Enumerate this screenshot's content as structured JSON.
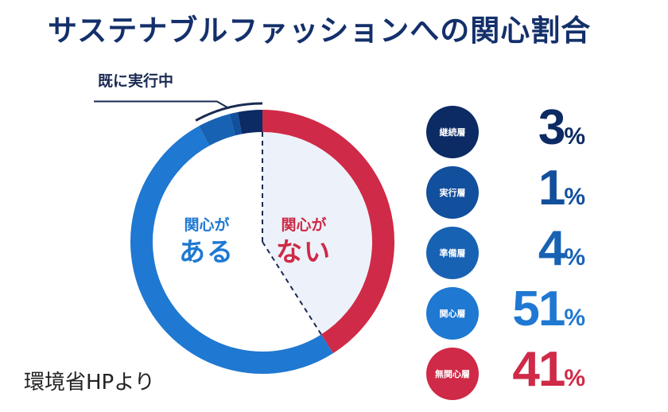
{
  "title": "サステナブルファッションへの関心割合",
  "callout_label": "既に実行中",
  "center_labels": {
    "yes_small": "関心が",
    "yes_big": "ある",
    "no_small": "関心が",
    "no_big": "ない"
  },
  "source": "環境省HPより",
  "colors": {
    "continuing": "#0c2a63",
    "executing": "#124f9c",
    "preparing": "#1862b4",
    "interested": "#1f78d1",
    "not_interested": "#cf2a47",
    "inner_not_interested": "#edf2fa"
  },
  "chart_data": {
    "type": "pie",
    "title": "サステナブルファッションへの関心割合",
    "slices": [
      {
        "label": "継続層",
        "value": 3,
        "display": "3",
        "color": "#0c2a63"
      },
      {
        "label": "実行層",
        "value": 1,
        "display": "1",
        "color": "#124f9c"
      },
      {
        "label": "準備層",
        "value": 4,
        "display": "4",
        "color": "#1862b4"
      },
      {
        "label": "関心層",
        "value": 51,
        "display": "51",
        "color": "#1f78d1"
      },
      {
        "label": "無関心層",
        "value": 41,
        "display": "41",
        "color": "#cf2a47"
      }
    ],
    "unit": "%",
    "groups": {
      "interested": "関心がある",
      "not_interested": "関心がない"
    }
  }
}
